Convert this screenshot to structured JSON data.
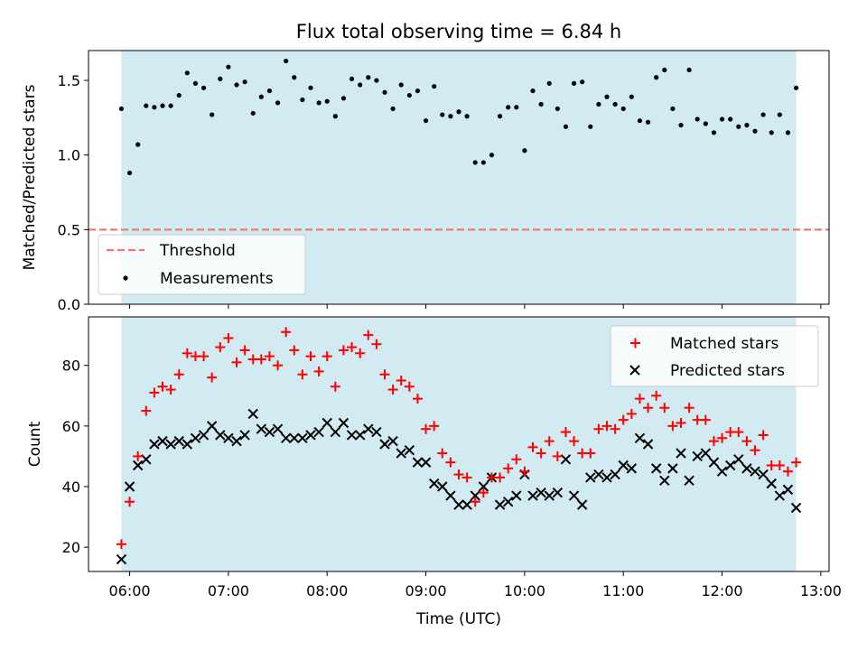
{
  "colors": {
    "span": "#add8e6",
    "threshold": "#f07878",
    "matched": "#ff0000",
    "predicted": "#000000",
    "measurement": "#000000"
  },
  "chart_data": [
    {
      "type": "scatter",
      "title": "Flux total observing time = 6.84 h",
      "xlabel": "",
      "ylabel": "Matched/Predicted stars",
      "xlim": [
        "05:35",
        "13:05"
      ],
      "ylim": [
        0,
        1.7
      ],
      "yticks": [
        "0.0",
        "0.5",
        "1.0",
        "1.5"
      ],
      "observing_span": [
        "05:55",
        "12:45"
      ],
      "threshold": 0.5,
      "legend_position": "lower-left",
      "legend": [
        "Threshold",
        "Measurements"
      ],
      "series": [
        {
          "name": "Measurements",
          "x": [
            "05:55",
            "06:00",
            "06:05",
            "06:10",
            "06:15",
            "06:20",
            "06:25",
            "06:30",
            "06:35",
            "06:40",
            "06:45",
            "06:50",
            "06:55",
            "07:00",
            "07:05",
            "07:10",
            "07:15",
            "07:20",
            "07:25",
            "07:30",
            "07:35",
            "07:40",
            "07:45",
            "07:50",
            "07:55",
            "08:00",
            "08:05",
            "08:10",
            "08:15",
            "08:20",
            "08:25",
            "08:30",
            "08:35",
            "08:40",
            "08:45",
            "08:50",
            "08:55",
            "09:00",
            "09:05",
            "09:10",
            "09:15",
            "09:20",
            "09:25",
            "09:30",
            "09:35",
            "09:40",
            "09:45",
            "09:50",
            "09:55",
            "10:00",
            "10:05",
            "10:10",
            "10:15",
            "10:20",
            "10:25",
            "10:30",
            "10:35",
            "10:40",
            "10:45",
            "10:50",
            "10:55",
            "11:00",
            "11:05",
            "11:10",
            "11:15",
            "11:20",
            "11:25",
            "11:30",
            "11:35",
            "11:40",
            "11:45",
            "11:50",
            "11:55",
            "12:00",
            "12:05",
            "12:10",
            "12:15",
            "12:20",
            "12:25",
            "12:30",
            "12:35",
            "12:40",
            "12:45"
          ],
          "y": [
            1.31,
            0.88,
            1.07,
            1.33,
            1.32,
            1.33,
            1.33,
            1.4,
            1.55,
            1.48,
            1.45,
            1.27,
            1.51,
            1.59,
            1.47,
            1.49,
            1.28,
            1.39,
            1.43,
            1.35,
            1.63,
            1.52,
            1.37,
            1.45,
            1.35,
            1.36,
            1.26,
            1.38,
            1.51,
            1.47,
            1.52,
            1.5,
            1.42,
            1.31,
            1.47,
            1.4,
            1.43,
            1.23,
            1.46,
            1.27,
            1.26,
            1.29,
            1.26,
            0.95,
            0.95,
            1.0,
            1.26,
            1.32,
            1.32,
            1.03,
            1.43,
            1.34,
            1.48,
            1.31,
            1.19,
            1.48,
            1.49,
            1.19,
            1.34,
            1.39,
            1.34,
            1.31,
            1.39,
            1.23,
            1.22,
            1.52,
            1.57,
            1.31,
            1.2,
            1.57,
            1.24,
            1.21,
            1.15,
            1.24,
            1.24,
            1.19,
            1.2,
            1.16,
            1.27,
            1.15,
            1.27,
            1.15,
            1.45
          ]
        }
      ]
    },
    {
      "type": "scatter",
      "title": "",
      "xlabel": "Time (UTC)",
      "ylabel": "Count",
      "xlim": [
        "05:35",
        "13:05"
      ],
      "ylim": [
        12,
        96
      ],
      "yticks": [
        "20",
        "40",
        "60",
        "80"
      ],
      "xticks": [
        "06:00",
        "07:00",
        "08:00",
        "09:00",
        "10:00",
        "11:00",
        "12:00",
        "13:00"
      ],
      "observing_span": [
        "05:55",
        "12:45"
      ],
      "legend_position": "upper-right",
      "legend": [
        "Matched stars",
        "Predicted stars"
      ],
      "series": [
        {
          "name": "Matched stars",
          "x": [
            "05:55",
            "06:00",
            "06:05",
            "06:10",
            "06:15",
            "06:20",
            "06:25",
            "06:30",
            "06:35",
            "06:40",
            "06:45",
            "06:50",
            "06:55",
            "07:00",
            "07:05",
            "07:10",
            "07:15",
            "07:20",
            "07:25",
            "07:30",
            "07:35",
            "07:40",
            "07:45",
            "07:50",
            "07:55",
            "08:00",
            "08:05",
            "08:10",
            "08:15",
            "08:20",
            "08:25",
            "08:30",
            "08:35",
            "08:40",
            "08:45",
            "08:50",
            "08:55",
            "09:00",
            "09:05",
            "09:10",
            "09:15",
            "09:20",
            "09:25",
            "09:30",
            "09:35",
            "09:40",
            "09:45",
            "09:50",
            "09:55",
            "10:00",
            "10:05",
            "10:10",
            "10:15",
            "10:20",
            "10:25",
            "10:30",
            "10:35",
            "10:40",
            "10:45",
            "10:50",
            "10:55",
            "11:00",
            "11:05",
            "11:10",
            "11:15",
            "11:20",
            "11:25",
            "11:30",
            "11:35",
            "11:40",
            "11:45",
            "11:50",
            "11:55",
            "12:00",
            "12:05",
            "12:10",
            "12:15",
            "12:20",
            "12:25",
            "12:30",
            "12:35",
            "12:40",
            "12:45"
          ],
          "y": [
            21,
            35,
            50,
            65,
            71,
            73,
            72,
            77,
            84,
            83,
            83,
            76,
            86,
            89,
            81,
            85,
            82,
            82,
            83,
            80,
            91,
            85,
            77,
            83,
            78,
            83,
            73,
            85,
            86,
            84,
            90,
            87,
            77,
            72,
            75,
            73,
            69,
            59,
            60,
            51,
            48,
            44,
            43,
            35,
            38,
            43,
            43,
            46,
            49,
            45,
            53,
            51,
            55,
            50,
            58,
            55,
            51,
            51,
            59,
            60,
            59,
            62,
            64,
            69,
            66,
            70,
            66,
            60,
            61,
            66,
            62,
            62,
            55,
            56,
            58,
            58,
            55,
            52,
            57,
            47,
            47,
            45,
            48
          ]
        },
        {
          "name": "Predicted stars",
          "x": [
            "05:55",
            "06:00",
            "06:05",
            "06:10",
            "06:15",
            "06:20",
            "06:25",
            "06:30",
            "06:35",
            "06:40",
            "06:45",
            "06:50",
            "06:55",
            "07:00",
            "07:05",
            "07:10",
            "07:15",
            "07:20",
            "07:25",
            "07:30",
            "07:35",
            "07:40",
            "07:45",
            "07:50",
            "07:55",
            "08:00",
            "08:05",
            "08:10",
            "08:15",
            "08:20",
            "08:25",
            "08:30",
            "08:35",
            "08:40",
            "08:45",
            "08:50",
            "08:55",
            "09:00",
            "09:05",
            "09:10",
            "09:15",
            "09:20",
            "09:25",
            "09:30",
            "09:35",
            "09:40",
            "09:45",
            "09:50",
            "09:55",
            "10:00",
            "10:05",
            "10:10",
            "10:15",
            "10:20",
            "10:25",
            "10:30",
            "10:35",
            "10:40",
            "10:45",
            "10:50",
            "10:55",
            "11:00",
            "11:05",
            "11:10",
            "11:15",
            "11:20",
            "11:25",
            "11:30",
            "11:35",
            "11:40",
            "11:45",
            "11:50",
            "11:55",
            "12:00",
            "12:05",
            "12:10",
            "12:15",
            "12:20",
            "12:25",
            "12:30",
            "12:35",
            "12:40",
            "12:45"
          ],
          "y": [
            16,
            40,
            47,
            49,
            54,
            55,
            54,
            55,
            54,
            56,
            57,
            60,
            57,
            56,
            55,
            57,
            64,
            59,
            58,
            59,
            56,
            56,
            56,
            57,
            58,
            61,
            58,
            61,
            57,
            57,
            59,
            58,
            54,
            55,
            51,
            52,
            48,
            48,
            41,
            40,
            37,
            34,
            34,
            37,
            40,
            43,
            34,
            35,
            37,
            44,
            37,
            38,
            37,
            38,
            49,
            37,
            34,
            43,
            44,
            43,
            44,
            47,
            46,
            56,
            54,
            46,
            42,
            46,
            51,
            42,
            50,
            51,
            48,
            45,
            47,
            49,
            46,
            45,
            44,
            41,
            37,
            39,
            33
          ]
        }
      ]
    }
  ]
}
